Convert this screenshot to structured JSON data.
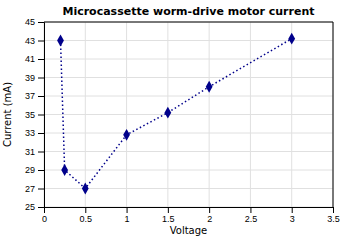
{
  "chart_data": {
    "type": "line",
    "title": "Microcassette worm-drive motor current",
    "xlabel": "Voltage",
    "ylabel": "Current (mA)",
    "x": [
      0.2,
      0.25,
      0.5,
      1.0,
      1.5,
      2.0,
      3.0
    ],
    "values": [
      43.0,
      29.0,
      27.0,
      32.8,
      35.2,
      38.0,
      43.2
    ],
    "color": "#00008B",
    "marker": "diamond",
    "line_style": "dotted",
    "xlim": [
      0,
      3.5
    ],
    "ylim": [
      25,
      45
    ],
    "xticks": [
      0,
      0.5,
      1,
      1.5,
      2,
      2.5,
      3,
      3.5
    ],
    "yticks": [
      25,
      27,
      29,
      31,
      33,
      35,
      37,
      39,
      41,
      43,
      45
    ],
    "grid": true
  }
}
